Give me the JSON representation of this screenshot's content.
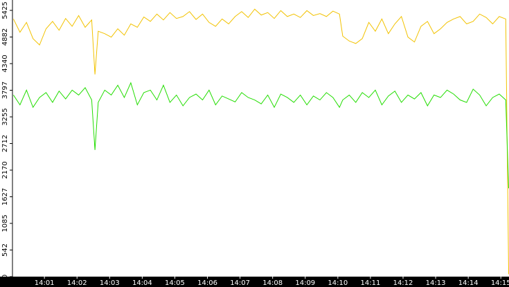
{
  "chart_data": {
    "type": "line",
    "x": [
      0.05,
      0.25,
      0.45,
      0.65,
      0.85,
      1.05,
      1.25,
      1.45,
      1.65,
      1.85,
      2.05,
      2.25,
      2.45,
      2.55,
      2.65,
      2.85,
      3.05,
      3.25,
      3.45,
      3.65,
      3.85,
      4.05,
      4.25,
      4.45,
      4.65,
      4.85,
      5.05,
      5.25,
      5.45,
      5.65,
      5.85,
      6.05,
      6.25,
      6.45,
      6.65,
      6.85,
      7.05,
      7.25,
      7.45,
      7.65,
      7.85,
      8.05,
      8.25,
      8.45,
      8.65,
      8.85,
      9.05,
      9.25,
      9.45,
      9.65,
      9.85,
      10.05,
      10.15,
      10.35,
      10.55,
      10.75,
      10.95,
      11.15,
      11.35,
      11.55,
      11.75,
      11.95,
      12.15,
      12.35,
      12.55,
      12.75,
      12.95,
      13.15,
      13.35,
      13.55,
      13.75,
      13.95,
      14.15,
      14.35,
      14.55,
      14.75,
      14.95,
      15.15,
      15.24
    ],
    "series": [
      {
        "color": "#f2c200",
        "values": [
          5250,
          4980,
          5180,
          4850,
          4720,
          5050,
          5200,
          5020,
          5260,
          5100,
          5320,
          5080,
          5230,
          4120,
          5000,
          4950,
          4880,
          5050,
          4920,
          5150,
          5080,
          5290,
          5200,
          5350,
          5230,
          5380,
          5260,
          5300,
          5400,
          5240,
          5350,
          5180,
          5100,
          5250,
          5150,
          5300,
          5400,
          5280,
          5450,
          5330,
          5380,
          5260,
          5420,
          5300,
          5350,
          5280,
          5420,
          5320,
          5360,
          5300,
          5410,
          5350,
          4900,
          4800,
          4750,
          4850,
          5180,
          5000,
          5250,
          4950,
          5150,
          5300,
          4880,
          4780,
          5100,
          5200,
          4950,
          5050,
          5180,
          5250,
          5300,
          5150,
          5200,
          5350,
          5280,
          5150,
          5300,
          5250,
          50
        ]
      },
      {
        "color": "#22dd00",
        "values": [
          3700,
          3500,
          3800,
          3450,
          3650,
          3750,
          3550,
          3780,
          3620,
          3800,
          3700,
          3850,
          3600,
          2580,
          3550,
          3800,
          3700,
          3900,
          3650,
          3950,
          3500,
          3750,
          3800,
          3600,
          3900,
          3550,
          3700,
          3480,
          3650,
          3720,
          3600,
          3800,
          3500,
          3680,
          3620,
          3560,
          3750,
          3650,
          3600,
          3520,
          3700,
          3450,
          3720,
          3650,
          3550,
          3700,
          3500,
          3680,
          3600,
          3750,
          3650,
          3450,
          3600,
          3700,
          3550,
          3750,
          3650,
          3800,
          3500,
          3680,
          3780,
          3550,
          3700,
          3620,
          3750,
          3480,
          3700,
          3650,
          3800,
          3720,
          3600,
          3550,
          3820,
          3700,
          3480,
          3650,
          3720,
          3600,
          1800
        ]
      }
    ],
    "xlim": [
      0.02,
      15.25
    ],
    "xticks": [
      {
        "value": 1,
        "label": "14:01"
      },
      {
        "value": 2,
        "label": "14:02"
      },
      {
        "value": 3,
        "label": "14:03"
      },
      {
        "value": 4,
        "label": "14:04"
      },
      {
        "value": 5,
        "label": "14:05"
      },
      {
        "value": 6,
        "label": "14:06"
      },
      {
        "value": 7,
        "label": "14:07"
      },
      {
        "value": 8,
        "label": "14:08"
      },
      {
        "value": 9,
        "label": "14:09"
      },
      {
        "value": 10,
        "label": "14:10"
      },
      {
        "value": 11,
        "label": "14:11"
      },
      {
        "value": 12,
        "label": "14:12"
      },
      {
        "value": 13,
        "label": "14:13"
      },
      {
        "value": 14,
        "label": "14:14"
      },
      {
        "value": 15,
        "label": "14:15"
      }
    ],
    "ylim": [
      0,
      5425
    ],
    "yticks": [
      0,
      542,
      1085,
      1627,
      2170,
      2712,
      3255,
      3797,
      4340,
      4882,
      5425
    ],
    "grid": false
  }
}
